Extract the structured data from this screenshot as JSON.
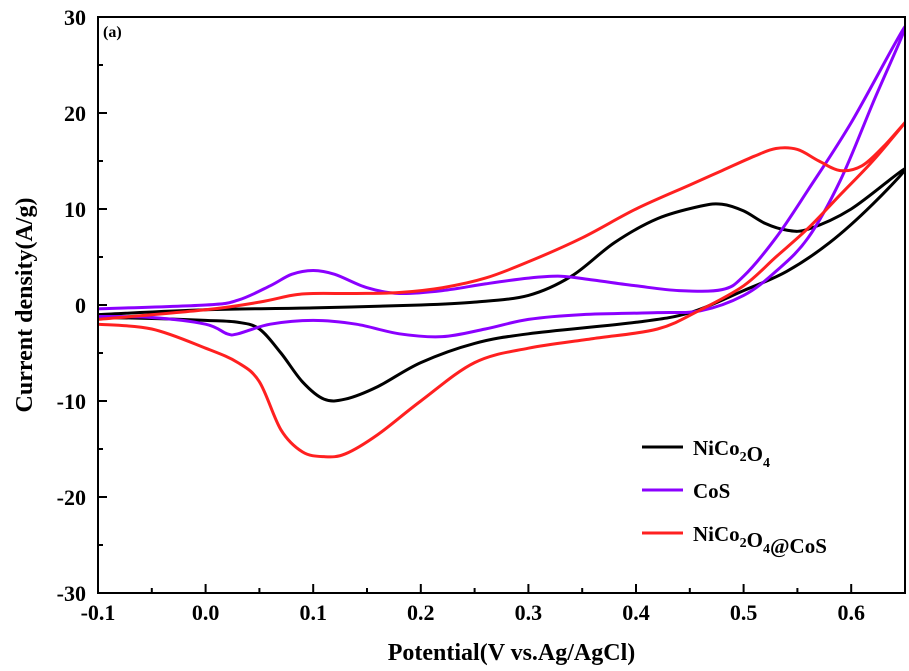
{
  "chart_data": {
    "type": "line",
    "title": "",
    "panel_label": "(a)",
    "xlabel": "Potential(V vs.Ag/AgCl)",
    "ylabel": "Current density(A/g)",
    "xlim": [
      -0.1,
      0.65
    ],
    "ylim": [
      -30,
      30
    ],
    "x_ticks": [
      -0.1,
      0.0,
      0.1,
      0.2,
      0.3,
      0.4,
      0.5,
      0.6
    ],
    "x_tick_labels": [
      "-0.1",
      "0.0",
      "0.1",
      "0.2",
      "0.3",
      "0.4",
      "0.5",
      "0.6"
    ],
    "y_ticks": [
      -30,
      -20,
      -10,
      0,
      10,
      20,
      30
    ],
    "y_tick_labels": [
      "-30",
      "-20",
      "-10",
      "0",
      "10",
      "20",
      "30"
    ],
    "grid": false,
    "legend_position": "bottom-right",
    "series": [
      {
        "name": "NiCo2O4",
        "legend_parts": [
          {
            "t": "NiCo",
            "s": false
          },
          {
            "t": "2",
            "s": true
          },
          {
            "t": "O",
            "s": false
          },
          {
            "t": "4",
            "s": true
          }
        ],
        "color": "#000000",
        "points": [
          [
            -0.1,
            -1.0
          ],
          [
            0.0,
            -0.5
          ],
          [
            0.1,
            -0.3
          ],
          [
            0.2,
            0.0
          ],
          [
            0.25,
            0.3
          ],
          [
            0.3,
            1.0
          ],
          [
            0.34,
            3.0
          ],
          [
            0.38,
            6.5
          ],
          [
            0.42,
            9.0
          ],
          [
            0.46,
            10.3
          ],
          [
            0.48,
            10.5
          ],
          [
            0.5,
            9.8
          ],
          [
            0.52,
            8.5
          ],
          [
            0.54,
            7.8
          ],
          [
            0.56,
            7.9
          ],
          [
            0.6,
            10.0
          ],
          [
            0.65,
            14.2
          ],
          [
            0.62,
            10.5
          ],
          [
            0.58,
            6.5
          ],
          [
            0.54,
            3.5
          ],
          [
            0.5,
            1.5
          ],
          [
            0.45,
            -0.8
          ],
          [
            0.4,
            -1.8
          ],
          [
            0.3,
            -3.0
          ],
          [
            0.25,
            -4.0
          ],
          [
            0.2,
            -6.0
          ],
          [
            0.16,
            -8.5
          ],
          [
            0.13,
            -9.8
          ],
          [
            0.11,
            -9.8
          ],
          [
            0.09,
            -8.0
          ],
          [
            0.07,
            -5.0
          ],
          [
            0.05,
            -2.5
          ],
          [
            0.03,
            -1.8
          ],
          [
            0.0,
            -1.6
          ],
          [
            -0.05,
            -1.4
          ],
          [
            -0.1,
            -1.3
          ]
        ]
      },
      {
        "name": "CoS",
        "legend_parts": [
          {
            "t": "CoS",
            "s": false
          }
        ],
        "color": "#8B00FF",
        "points": [
          [
            -0.1,
            -0.4
          ],
          [
            0.0,
            0.0
          ],
          [
            0.03,
            0.5
          ],
          [
            0.06,
            2.0
          ],
          [
            0.08,
            3.2
          ],
          [
            0.1,
            3.6
          ],
          [
            0.12,
            3.2
          ],
          [
            0.15,
            1.8
          ],
          [
            0.18,
            1.2
          ],
          [
            0.22,
            1.5
          ],
          [
            0.26,
            2.2
          ],
          [
            0.3,
            2.8
          ],
          [
            0.33,
            3.0
          ],
          [
            0.36,
            2.6
          ],
          [
            0.4,
            2.0
          ],
          [
            0.44,
            1.5
          ],
          [
            0.48,
            1.6
          ],
          [
            0.5,
            3.0
          ],
          [
            0.53,
            7.0
          ],
          [
            0.56,
            12.0
          ],
          [
            0.6,
            19.0
          ],
          [
            0.65,
            29.0
          ],
          [
            0.62,
            21.0
          ],
          [
            0.59,
            13.0
          ],
          [
            0.56,
            7.0
          ],
          [
            0.53,
            3.5
          ],
          [
            0.5,
            1.0
          ],
          [
            0.46,
            -0.6
          ],
          [
            0.42,
            -0.8
          ],
          [
            0.35,
            -1.0
          ],
          [
            0.3,
            -1.5
          ],
          [
            0.26,
            -2.5
          ],
          [
            0.22,
            -3.3
          ],
          [
            0.18,
            -3.0
          ],
          [
            0.14,
            -2.0
          ],
          [
            0.1,
            -1.6
          ],
          [
            0.06,
            -2.0
          ],
          [
            0.03,
            -3.0
          ],
          [
            0.02,
            -3.0
          ],
          [
            0.0,
            -2.0
          ],
          [
            -0.05,
            -1.3
          ],
          [
            -0.1,
            -1.2
          ]
        ]
      },
      {
        "name": "NiCo2O4@CoS",
        "legend_parts": [
          {
            "t": "NiCo",
            "s": false
          },
          {
            "t": "2",
            "s": true
          },
          {
            "t": "O",
            "s": false
          },
          {
            "t": "4",
            "s": true
          },
          {
            "t": "@CoS",
            "s": false
          }
        ],
        "color": "#FF2020",
        "points": [
          [
            -0.1,
            -1.5
          ],
          [
            0.0,
            -0.5
          ],
          [
            0.05,
            0.3
          ],
          [
            0.08,
            1.0
          ],
          [
            0.1,
            1.2
          ],
          [
            0.14,
            1.2
          ],
          [
            0.18,
            1.3
          ],
          [
            0.22,
            1.8
          ],
          [
            0.26,
            2.8
          ],
          [
            0.3,
            4.5
          ],
          [
            0.35,
            7.0
          ],
          [
            0.4,
            10.0
          ],
          [
            0.45,
            12.5
          ],
          [
            0.48,
            14.0
          ],
          [
            0.51,
            15.5
          ],
          [
            0.53,
            16.3
          ],
          [
            0.55,
            16.2
          ],
          [
            0.57,
            15.0
          ],
          [
            0.59,
            14.0
          ],
          [
            0.61,
            14.5
          ],
          [
            0.63,
            16.5
          ],
          [
            0.65,
            19.0
          ],
          [
            0.62,
            15.0
          ],
          [
            0.59,
            11.5
          ],
          [
            0.56,
            8.0
          ],
          [
            0.53,
            5.0
          ],
          [
            0.5,
            2.0
          ],
          [
            0.46,
            -0.5
          ],
          [
            0.42,
            -2.5
          ],
          [
            0.36,
            -3.5
          ],
          [
            0.3,
            -4.5
          ],
          [
            0.25,
            -6.0
          ],
          [
            0.2,
            -10.0
          ],
          [
            0.16,
            -13.5
          ],
          [
            0.13,
            -15.5
          ],
          [
            0.11,
            -15.8
          ],
          [
            0.09,
            -15.3
          ],
          [
            0.07,
            -13.0
          ],
          [
            0.05,
            -8.0
          ],
          [
            0.03,
            -6.0
          ],
          [
            0.0,
            -4.5
          ],
          [
            -0.05,
            -2.5
          ],
          [
            -0.1,
            -2.0
          ]
        ]
      }
    ]
  }
}
